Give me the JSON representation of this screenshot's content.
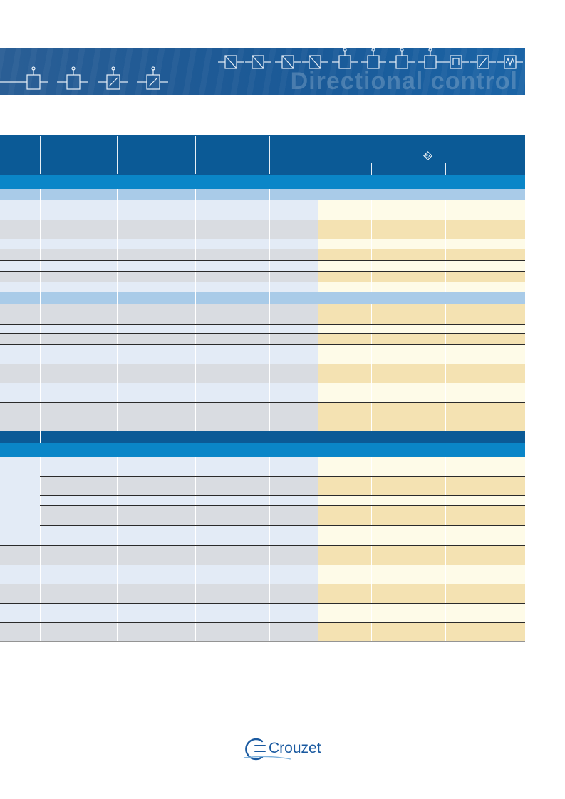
{
  "banner": {
    "title": "Directional control"
  },
  "brand": {
    "name": "Crouzet"
  },
  "colors": {
    "header_dark_blue": "#0b5a96",
    "section_blue": "#0a86c8",
    "subsection_light_blue": "#a9cbe8",
    "row_light": "#e3ebf6",
    "row_grey": "#d9dce1",
    "cell_cream_light": "#fefbe8",
    "cell_cream_dark": "#f4e2b2"
  },
  "icons": {
    "explosion_proof": "ex-atex-icon",
    "logo": "crouzet-logo-icon"
  }
}
